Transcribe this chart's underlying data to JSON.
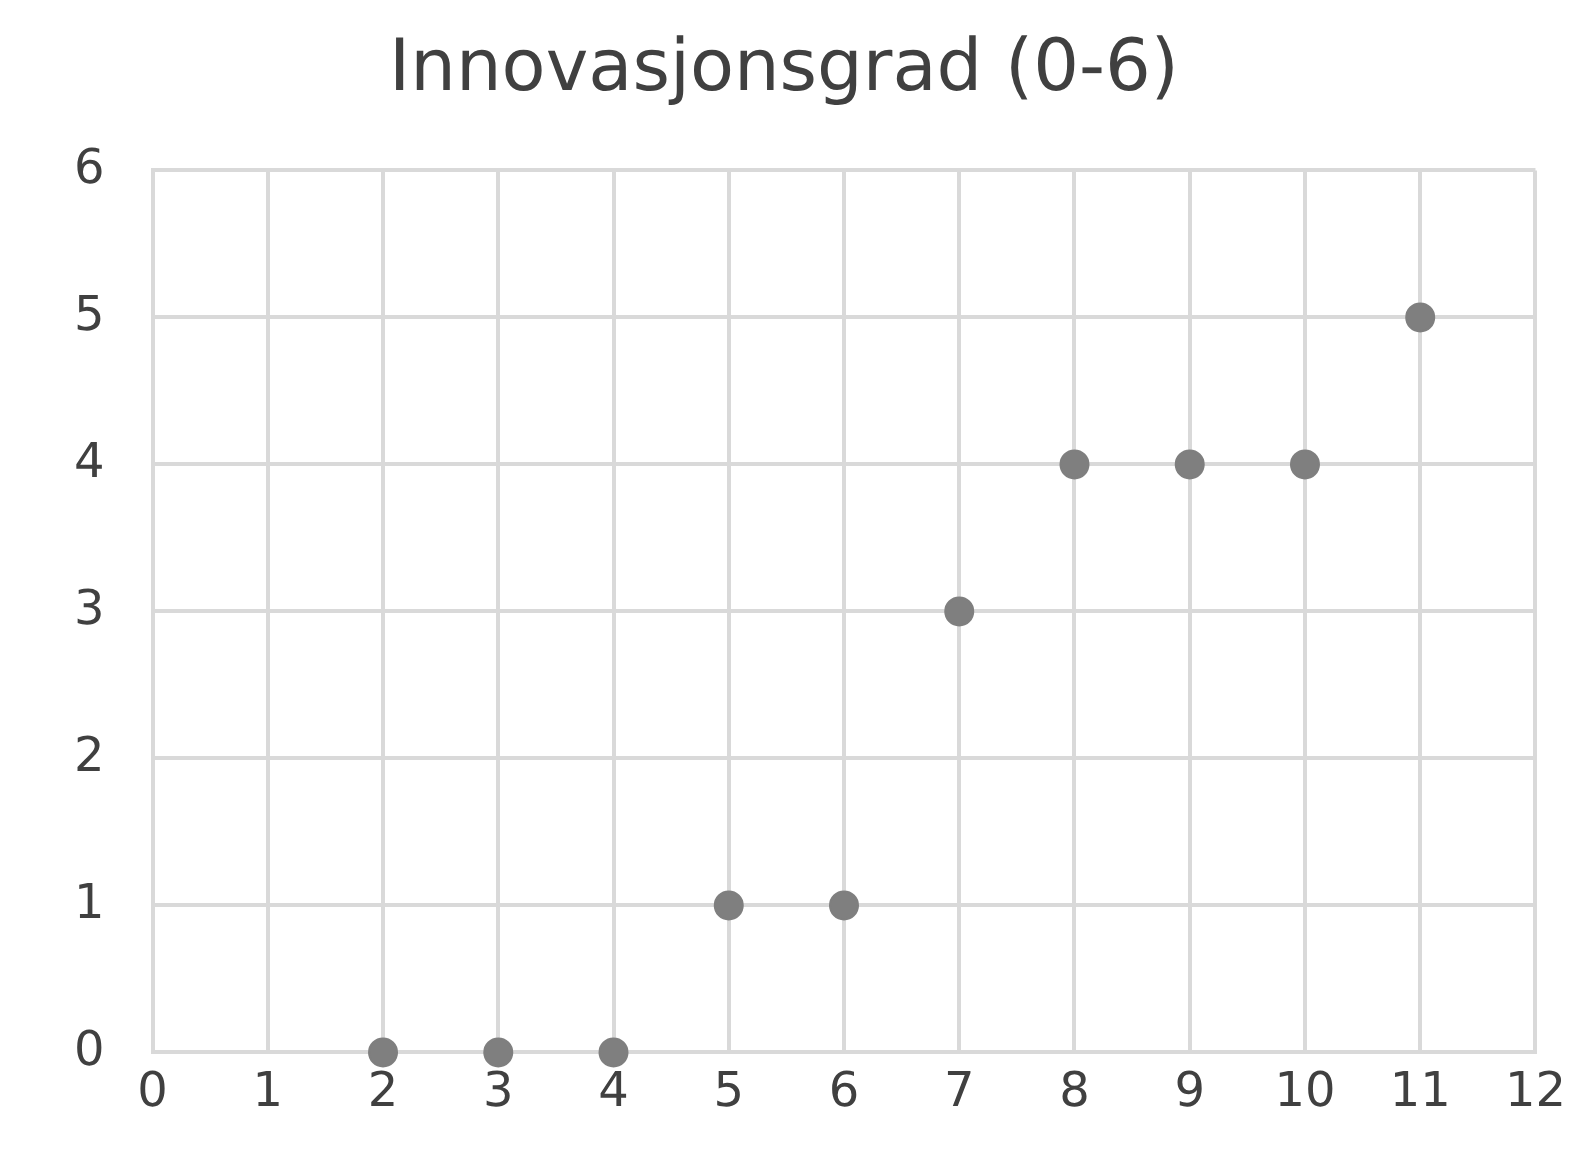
{
  "chart_data": {
    "type": "scatter",
    "title": "Innovasjonsgrad (0-6)",
    "x": [
      2,
      3,
      4,
      5,
      6,
      7,
      8,
      9,
      10,
      11
    ],
    "series": [
      {
        "color": "#7f7f7f",
        "values": [
          0,
          0,
          0,
          1,
          1,
          3,
          4,
          4,
          4,
          5
        ]
      }
    ],
    "xlim": [
      0,
      12
    ],
    "xticks": [
      0,
      1,
      2,
      3,
      4,
      5,
      6,
      7,
      8,
      9,
      10,
      11,
      12
    ],
    "ylim": [
      0,
      6
    ],
    "yticks": [
      0,
      1,
      2,
      3,
      4,
      5,
      6
    ],
    "grid": true,
    "legend": false,
    "marker": "circle"
  }
}
